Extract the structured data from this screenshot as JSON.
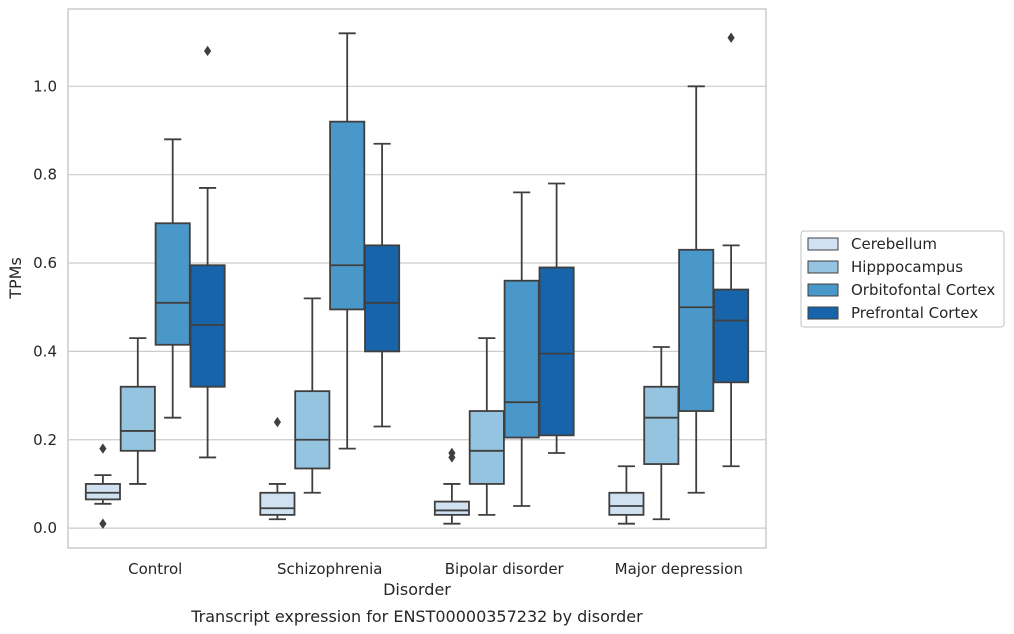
{
  "chart_data": {
    "type": "box",
    "caption": "Transcript expression for ENST00000357232 by disorder",
    "xlabel": "Disorder",
    "ylabel": "TPMs",
    "ylim": [
      -0.045,
      1.175
    ],
    "yticks": [
      "0.0",
      "0.2",
      "0.4",
      "0.6",
      "0.8",
      "1.0"
    ],
    "grid": true,
    "legend_placement": "right, outside",
    "categories": [
      "Control",
      "Schizophrenia",
      "Bipolar disorder",
      "Major depression"
    ],
    "series": [
      {
        "name": "Cerebellum",
        "color": "#d0e1f2",
        "boxes": [
          {
            "whislo": 0.055,
            "q1": 0.065,
            "med": 0.08,
            "q3": 0.1,
            "whishi": 0.12,
            "fliers": [
              0.18,
              0.01
            ]
          },
          {
            "whislo": 0.02,
            "q1": 0.03,
            "med": 0.045,
            "q3": 0.08,
            "whishi": 0.1,
            "fliers": [
              0.24
            ]
          },
          {
            "whislo": 0.01,
            "q1": 0.03,
            "med": 0.04,
            "q3": 0.06,
            "whishi": 0.1,
            "fliers": [
              0.17,
              0.16
            ]
          },
          {
            "whislo": 0.01,
            "q1": 0.03,
            "med": 0.05,
            "q3": 0.08,
            "whishi": 0.14,
            "fliers": []
          }
        ]
      },
      {
        "name": "Hipppocampus",
        "color": "#94c4df",
        "boxes": [
          {
            "whislo": 0.1,
            "q1": 0.175,
            "med": 0.22,
            "q3": 0.32,
            "whishi": 0.43,
            "fliers": []
          },
          {
            "whislo": 0.08,
            "q1": 0.135,
            "med": 0.2,
            "q3": 0.31,
            "whishi": 0.52,
            "fliers": []
          },
          {
            "whislo": 0.03,
            "q1": 0.1,
            "med": 0.175,
            "q3": 0.265,
            "whishi": 0.43,
            "fliers": []
          },
          {
            "whislo": 0.02,
            "q1": 0.145,
            "med": 0.25,
            "q3": 0.32,
            "whishi": 0.41,
            "fliers": []
          }
        ]
      },
      {
        "name": "Orbitofontal Cortex",
        "color": "#4a98c9",
        "boxes": [
          {
            "whislo": 0.25,
            "q1": 0.415,
            "med": 0.51,
            "q3": 0.69,
            "whishi": 0.88,
            "fliers": []
          },
          {
            "whislo": 0.18,
            "q1": 0.495,
            "med": 0.595,
            "q3": 0.92,
            "whishi": 1.12,
            "fliers": []
          },
          {
            "whislo": 0.05,
            "q1": 0.205,
            "med": 0.285,
            "q3": 0.56,
            "whishi": 0.76,
            "fliers": []
          },
          {
            "whislo": 0.08,
            "q1": 0.265,
            "med": 0.5,
            "q3": 0.63,
            "whishi": 1.0,
            "fliers": []
          }
        ]
      },
      {
        "name": "Prefrontal Cortex",
        "color": "#1764ab",
        "boxes": [
          {
            "whislo": 0.16,
            "q1": 0.32,
            "med": 0.46,
            "q3": 0.595,
            "whishi": 0.77,
            "fliers": [
              1.08
            ]
          },
          {
            "whislo": 0.23,
            "q1": 0.4,
            "med": 0.51,
            "q3": 0.64,
            "whishi": 0.87,
            "fliers": []
          },
          {
            "whislo": 0.17,
            "q1": 0.21,
            "med": 0.395,
            "q3": 0.59,
            "whishi": 0.78,
            "fliers": []
          },
          {
            "whislo": 0.14,
            "q1": 0.33,
            "med": 0.47,
            "q3": 0.54,
            "whishi": 0.64,
            "fliers": [
              1.11
            ]
          }
        ]
      }
    ]
  }
}
